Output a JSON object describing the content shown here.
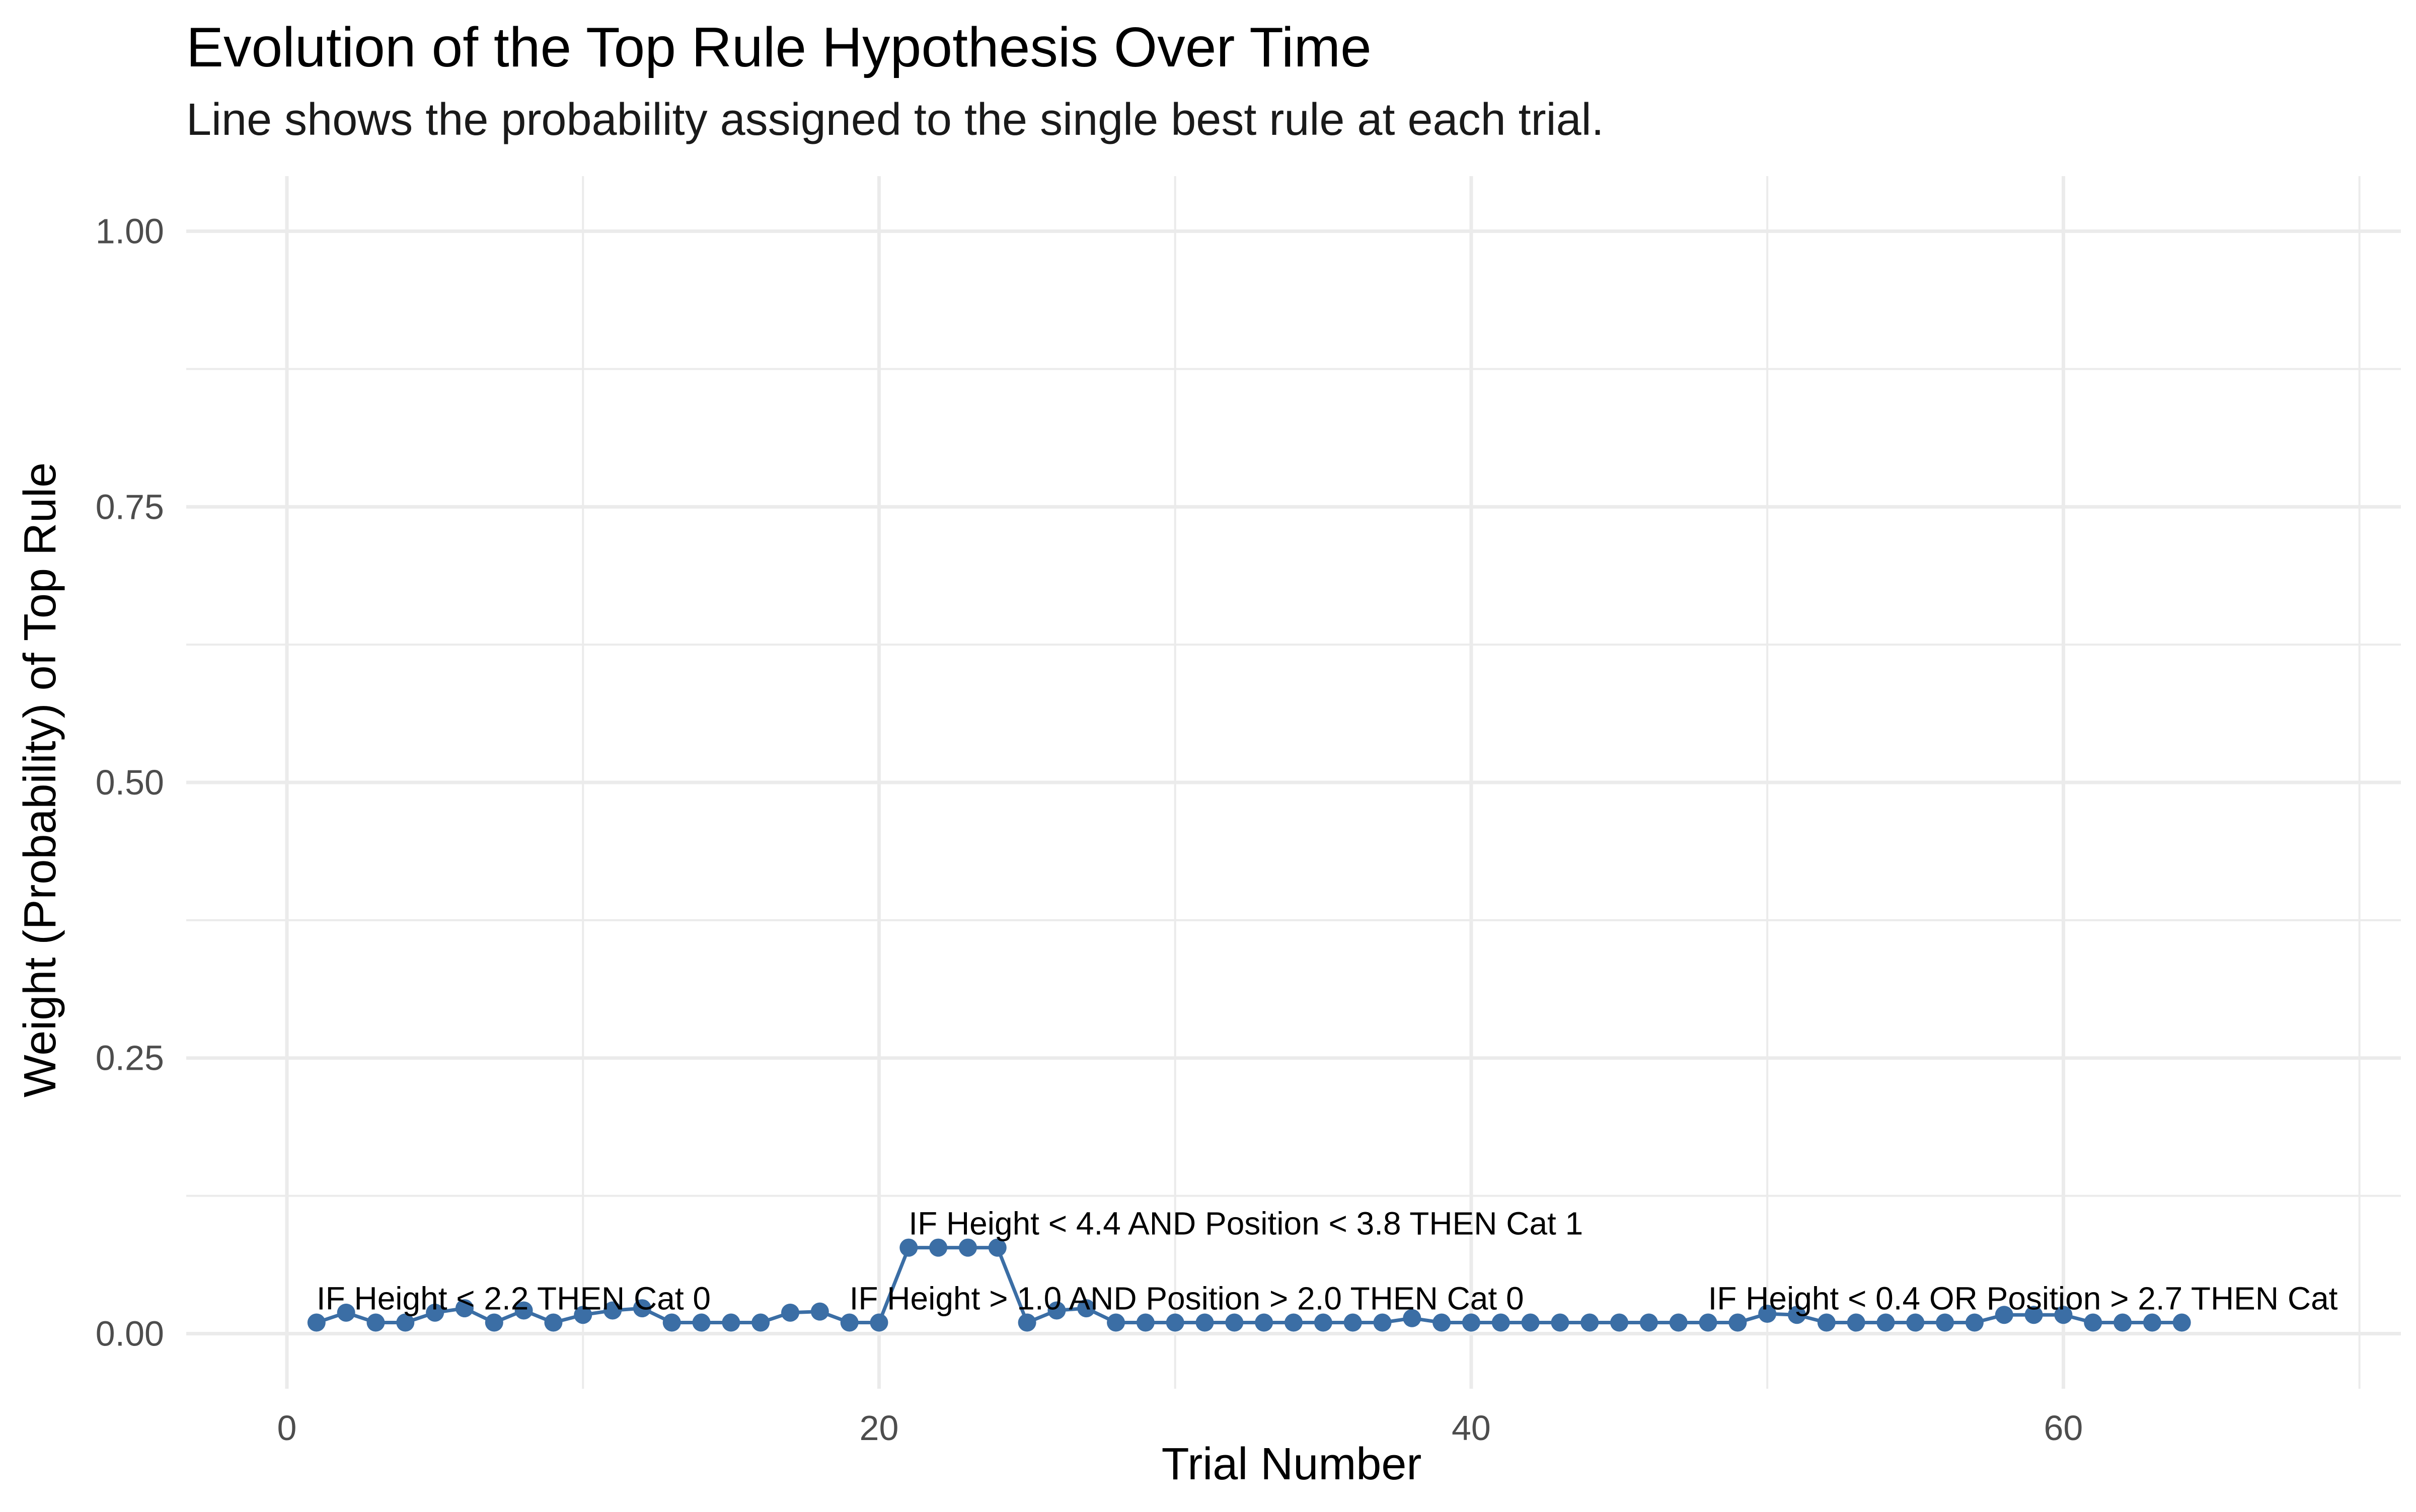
{
  "chart_data": {
    "type": "line",
    "title": "Evolution of the Top Rule Hypothesis Over Time",
    "subtitle": "Line shows the probability assigned to the single best rule at each trial.",
    "xlabel": "Trial Number",
    "ylabel": "Weight (Probability) of Top Rule",
    "xlim": [
      -3.4,
      71.4
    ],
    "ylim": [
      -0.05,
      1.05
    ],
    "x_ticks": [
      0,
      20,
      40,
      60
    ],
    "x_tick_labels": [
      "0",
      "20",
      "40",
      "60"
    ],
    "y_ticks": [
      0,
      0.25,
      0.5,
      0.75,
      1.0
    ],
    "y_tick_labels": [
      "0.00",
      "0.25",
      "0.50",
      "0.75",
      "1.00"
    ],
    "grid": true,
    "legend": "none",
    "series": [
      {
        "color": "#3b6ea5",
        "x": [
          1,
          2,
          3,
          4,
          5,
          6,
          7,
          8,
          9,
          10,
          11,
          12,
          13,
          14,
          15,
          16,
          17,
          18,
          19,
          20,
          21,
          22,
          23,
          24,
          25,
          26,
          27,
          28,
          29,
          30,
          31,
          32,
          33,
          34,
          35,
          36,
          37,
          38,
          39,
          40,
          41,
          42,
          43,
          44,
          45,
          46,
          47,
          48,
          49,
          50,
          51,
          52,
          53,
          54,
          55,
          56,
          57,
          58,
          59,
          60,
          61,
          62,
          63,
          64
        ],
        "values": [
          0.01,
          0.019,
          0.01,
          0.01,
          0.019,
          0.023,
          0.01,
          0.021,
          0.01,
          0.017,
          0.021,
          0.023,
          0.01,
          0.01,
          0.01,
          0.01,
          0.019,
          0.02,
          0.01,
          0.01,
          0.078,
          0.078,
          0.078,
          0.078,
          0.01,
          0.021,
          0.023,
          0.01,
          0.01,
          0.01,
          0.01,
          0.01,
          0.01,
          0.01,
          0.01,
          0.01,
          0.01,
          0.014,
          0.01,
          0.01,
          0.01,
          0.01,
          0.01,
          0.01,
          0.01,
          0.01,
          0.01,
          0.01,
          0.01,
          0.018,
          0.017,
          0.01,
          0.01,
          0.01,
          0.01,
          0.01,
          0.01,
          0.017,
          0.017,
          0.017,
          0.01,
          0.01,
          0.01,
          0.01
        ]
      }
    ],
    "annotations": [
      {
        "text": "IF Height < 2.2 THEN Cat 0",
        "x": 1,
        "y": 0.01
      },
      {
        "text": "IF Height < 4.4 AND Position < 3.8 THEN Cat 1",
        "x": 21,
        "y": 0.078
      },
      {
        "text": "IF Height > 1.0 AND Position > 2.0 THEN Cat 0",
        "x": 19,
        "y": 0.01
      },
      {
        "text": "IF Height < 0.4 OR Position > 2.7 THEN Cat",
        "x": 48,
        "y": 0.01
      }
    ]
  }
}
